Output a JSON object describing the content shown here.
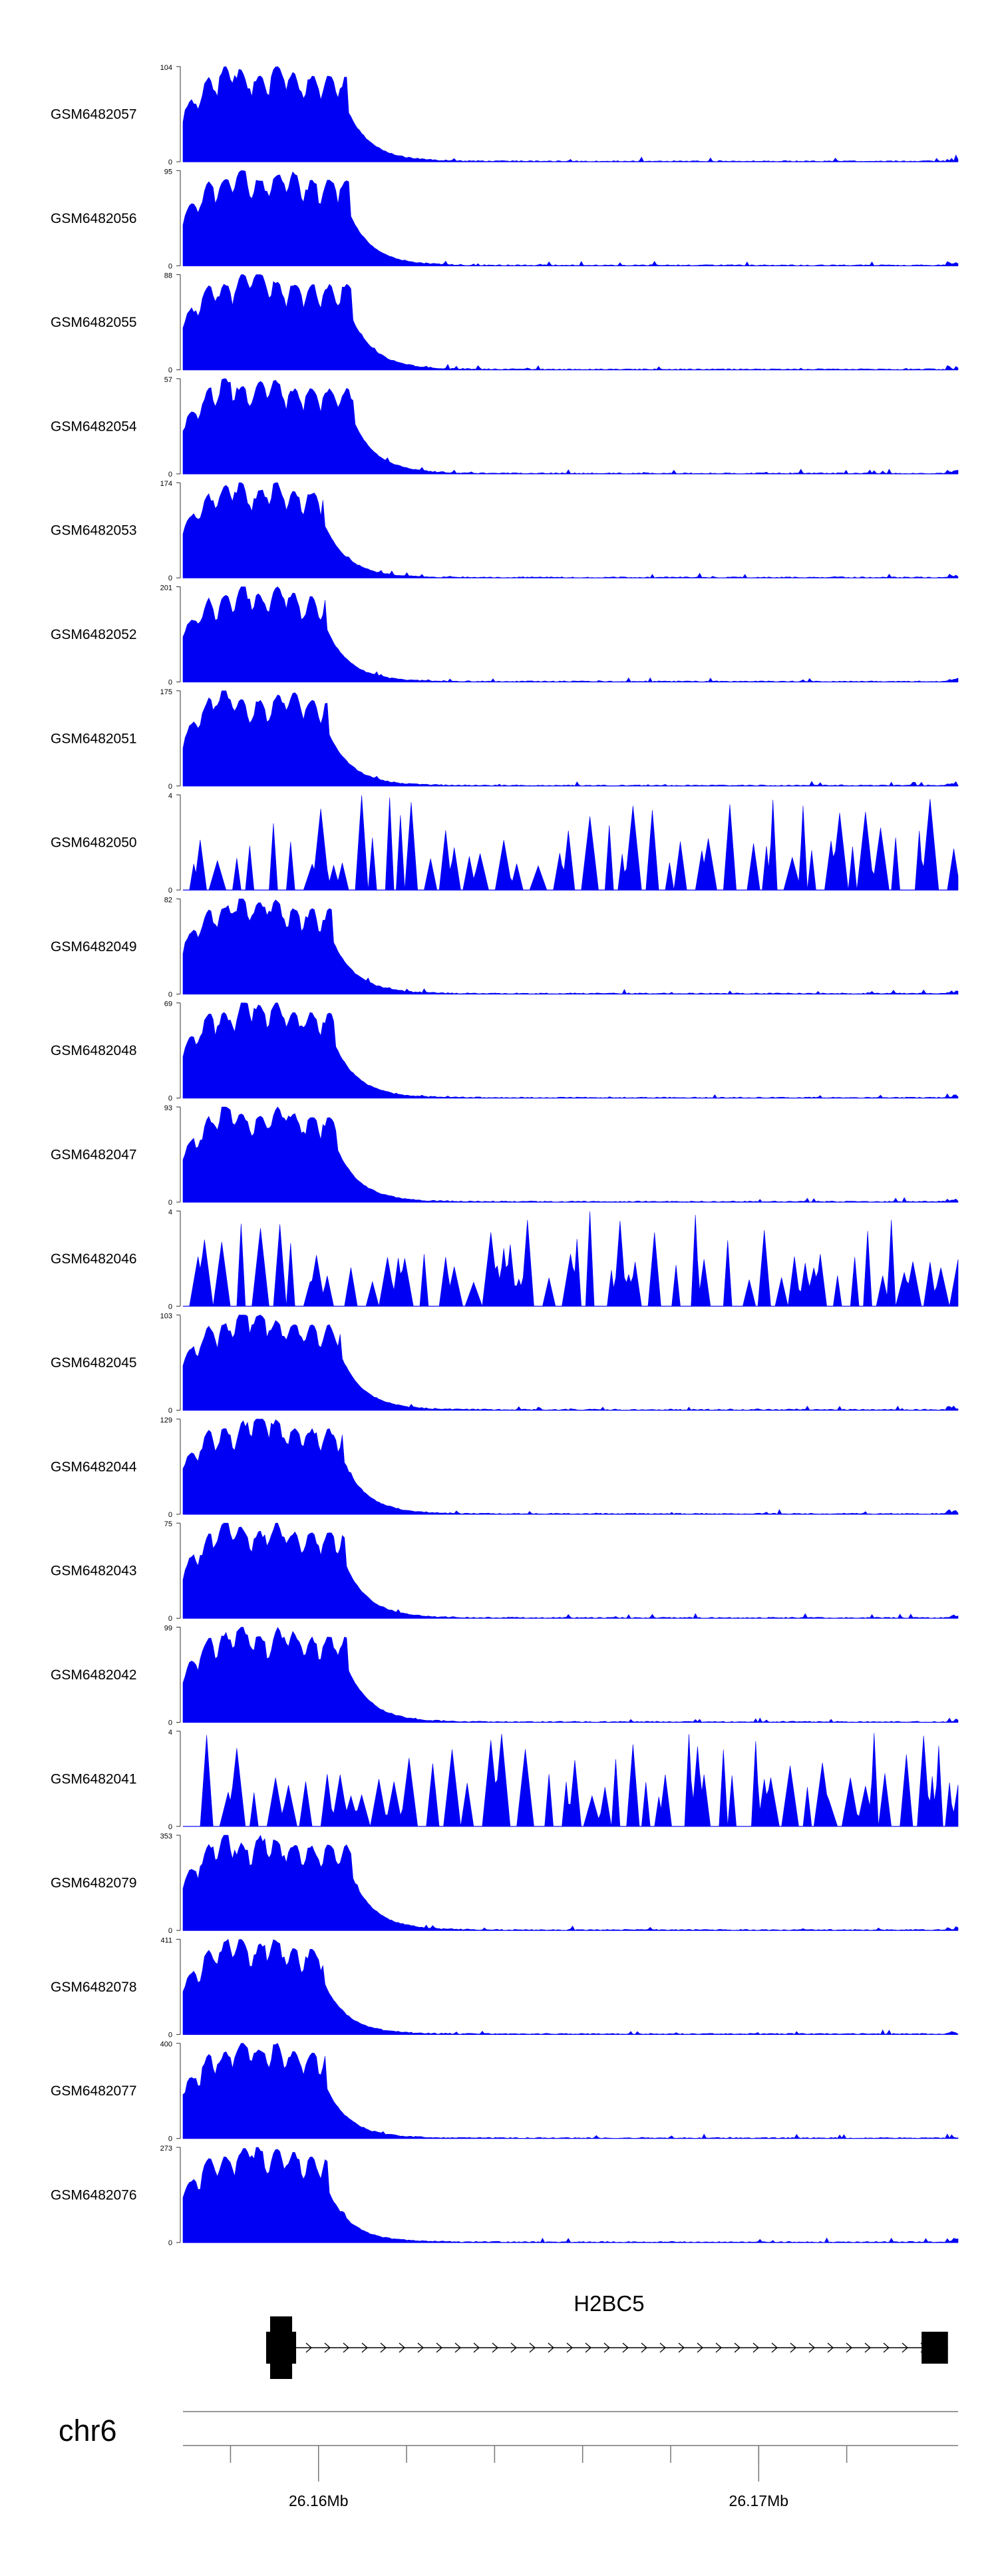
{
  "colors": {
    "fill": "#0000f5",
    "axis": "#333333",
    "text": "#000000",
    "gene": "#000000",
    "grey": "#777777"
  },
  "chart_data": {
    "type": "area",
    "xlim": [
      26.15392,
      26.17153
    ],
    "xunit": "Mb",
    "tracks": [
      {
        "name": "GSM6482057",
        "ymax": 104,
        "ymin": 0,
        "pattern": "high"
      },
      {
        "name": "GSM6482056",
        "ymax": 95,
        "ymin": 0,
        "pattern": "high"
      },
      {
        "name": "GSM6482055",
        "ymax": 88,
        "ymin": 0,
        "pattern": "high"
      },
      {
        "name": "GSM6482054",
        "ymax": 57,
        "ymin": 0,
        "pattern": "high"
      },
      {
        "name": "GSM6482053",
        "ymax": 174,
        "ymin": 0,
        "pattern": "high"
      },
      {
        "name": "GSM6482052",
        "ymax": 201,
        "ymin": 0,
        "pattern": "high"
      },
      {
        "name": "GSM6482051",
        "ymax": 175,
        "ymin": 0,
        "pattern": "high"
      },
      {
        "name": "GSM6482050",
        "ymax": 4,
        "ymin": 0,
        "pattern": "noise"
      },
      {
        "name": "GSM6482049",
        "ymax": 82,
        "ymin": 0,
        "pattern": "high"
      },
      {
        "name": "GSM6482048",
        "ymax": 69,
        "ymin": 0,
        "pattern": "high"
      },
      {
        "name": "GSM6482047",
        "ymax": 93,
        "ymin": 0,
        "pattern": "high"
      },
      {
        "name": "GSM6482046",
        "ymax": 4,
        "ymin": 0,
        "pattern": "noise"
      },
      {
        "name": "GSM6482045",
        "ymax": 103,
        "ymin": 0,
        "pattern": "high"
      },
      {
        "name": "GSM6482044",
        "ymax": 129,
        "ymin": 0,
        "pattern": "high"
      },
      {
        "name": "GSM6482043",
        "ymax": 75,
        "ymin": 0,
        "pattern": "high"
      },
      {
        "name": "GSM6482042",
        "ymax": 99,
        "ymin": 0,
        "pattern": "high"
      },
      {
        "name": "GSM6482041",
        "ymax": 4,
        "ymin": 0,
        "pattern": "noise"
      },
      {
        "name": "GSM6482079",
        "ymax": 353,
        "ymin": 0,
        "pattern": "high"
      },
      {
        "name": "GSM6482078",
        "ymax": 411,
        "ymin": 0,
        "pattern": "high"
      },
      {
        "name": "GSM6482077",
        "ymax": 400,
        "ymin": 0,
        "pattern": "high"
      },
      {
        "name": "GSM6482076",
        "ymax": 273,
        "ymin": 0,
        "pattern": "high"
      }
    ],
    "gene": {
      "name": "H2BC5",
      "strand": "+",
      "start": 26.1559,
      "end": 26.1713,
      "exons": [
        [
          26.1559,
          26.1564
        ],
        [
          26.1707,
          26.1713
        ]
      ]
    },
    "chromosome": "chr6",
    "ticks": [
      26.155,
      26.157,
      26.159,
      26.161,
      26.163,
      26.165,
      26.167,
      26.169
    ],
    "tick_labels": [
      {
        "value": 26.157,
        "label": "26.16Mb"
      },
      {
        "value": 26.167,
        "label": "26.17Mb"
      }
    ]
  }
}
